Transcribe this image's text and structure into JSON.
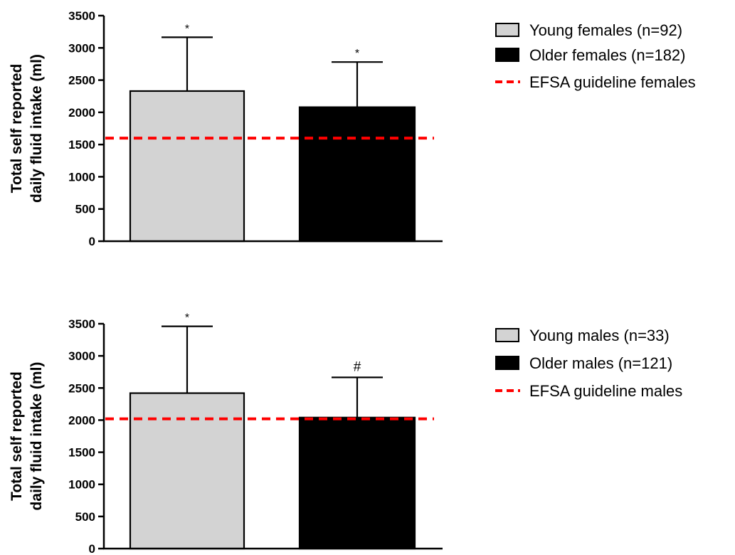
{
  "colors": {
    "young": "#d3d3d3",
    "older": "#000000",
    "guideline": "#ff0000",
    "axis": "#000000"
  },
  "chart_data": [
    {
      "type": "bar",
      "ylabel_line1": "Total self reported",
      "ylabel_line2": "daily fluid intake (ml)",
      "ylim": [
        0,
        3500
      ],
      "yticks": [
        0,
        500,
        1000,
        1500,
        2000,
        2500,
        3000,
        3500
      ],
      "grid": false,
      "legend_placement": "top-right",
      "series": [
        {
          "name": "Young females (n=92)",
          "value": 2330,
          "error_upper": 3165,
          "annotation": "*",
          "color": "#d3d3d3"
        },
        {
          "name": "Older females (n=182)",
          "value": 2080,
          "error_upper": 2780,
          "annotation": "*",
          "color": "#000000"
        }
      ],
      "reference_line": {
        "name": "EFSA guideline females",
        "value": 1600,
        "style": "dashed",
        "color": "#ff0000"
      }
    },
    {
      "type": "bar",
      "ylabel_line1": "Total self reported",
      "ylabel_line2": "daily fluid intake (ml)",
      "ylim": [
        0,
        3500
      ],
      "yticks": [
        0,
        500,
        1000,
        1500,
        2000,
        2500,
        3000,
        3500
      ],
      "grid": false,
      "legend_placement": "right",
      "series": [
        {
          "name": "Young males (n=33)",
          "value": 2420,
          "error_upper": 3460,
          "annotation": "*",
          "color": "#d3d3d3"
        },
        {
          "name": "Older males (n=121)",
          "value": 2040,
          "error_upper": 2665,
          "annotation": "#",
          "color": "#000000"
        }
      ],
      "reference_line": {
        "name": "EFSA guideline males",
        "value": 2020,
        "style": "dashed",
        "color": "#ff0000"
      }
    }
  ]
}
